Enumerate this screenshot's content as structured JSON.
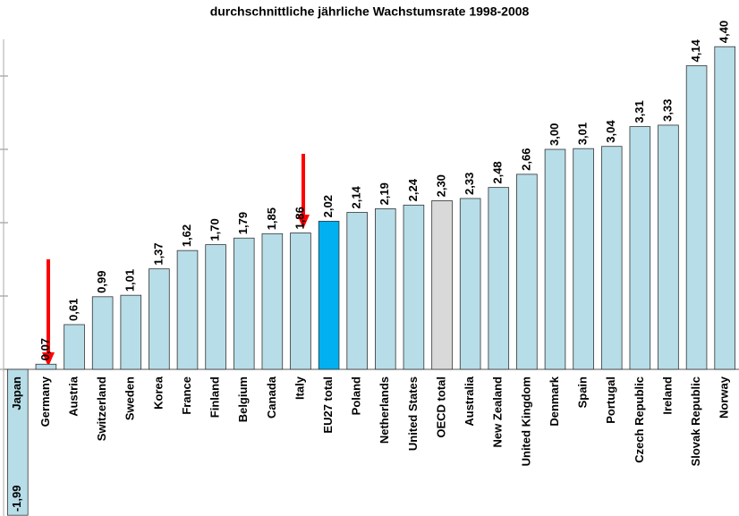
{
  "chart_data": {
    "type": "bar",
    "title": "durchschnittliche jährliche Wachstumsrate 1998-2008",
    "categories": [
      "Japan",
      "Germany",
      "Austria",
      "Switzerland",
      "Sweden",
      "Korea",
      "France",
      "Finland",
      "Belgium",
      "Canada",
      "Italy",
      "EU27 total",
      "Poland",
      "Netherlands",
      "United States",
      "OECD total",
      "Australia",
      "New Zealand",
      "United Kingdom",
      "Denmark",
      "Spain",
      "Portugal",
      "Czech Republic",
      "Ireland",
      "Slovak Republic",
      "Norway"
    ],
    "values": [
      -1.99,
      0.07,
      0.61,
      0.99,
      1.01,
      1.37,
      1.62,
      1.7,
      1.79,
      1.85,
      1.86,
      2.02,
      2.14,
      2.19,
      2.24,
      2.3,
      2.33,
      2.48,
      2.66,
      3.0,
      3.01,
      3.04,
      3.31,
      3.33,
      4.14,
      4.4
    ],
    "value_labels": [
      "-1,99",
      "0,07",
      "0,61",
      "0,99",
      "1,01",
      "1,37",
      "1,62",
      "1,70",
      "1,79",
      "1,85",
      "1,86",
      "2,02",
      "2,14",
      "2,19",
      "2,24",
      "2,30",
      "2,33",
      "2,48",
      "2,66",
      "3,00",
      "3,01",
      "3,04",
      "3,31",
      "3,33",
      "4,14",
      "4,40"
    ],
    "colors": [
      "#b7dde8",
      "#b7dde8",
      "#b7dde8",
      "#b7dde8",
      "#b7dde8",
      "#b7dde8",
      "#b7dde8",
      "#b7dde8",
      "#b7dde8",
      "#b7dde8",
      "#b7dde8",
      "#00b0f0",
      "#b7dde8",
      "#b7dde8",
      "#b7dde8",
      "#d9d9d9",
      "#b7dde8",
      "#b7dde8",
      "#b7dde8",
      "#b7dde8",
      "#b7dde8",
      "#b7dde8",
      "#b7dde8",
      "#b7dde8",
      "#b7dde8",
      "#b7dde8"
    ],
    "ylim": [
      -2,
      4.5
    ],
    "yticks": [
      0,
      1,
      2,
      3,
      4
    ]
  }
}
